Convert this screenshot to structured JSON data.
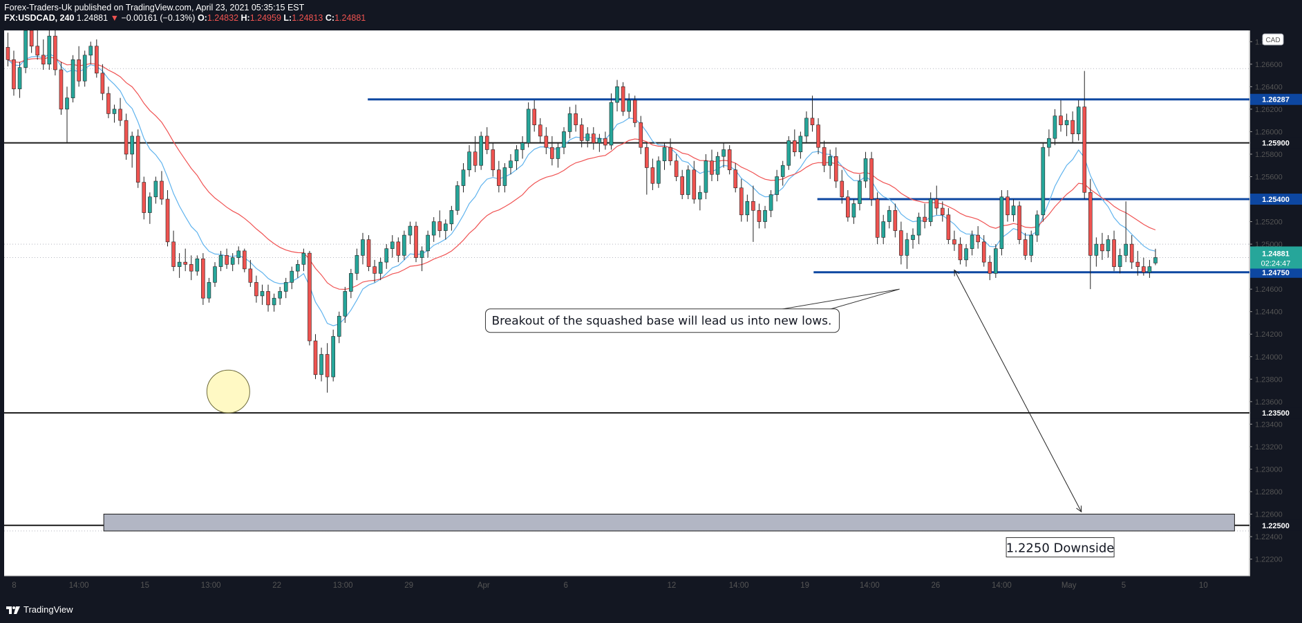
{
  "header": {
    "line1": "Forex-Traders-Uk published on TradingView.com, April 23, 2021 05:35:15 EST",
    "symbol": "FX:USDCAD, 240",
    "last": "1.24881",
    "arrow": "▼",
    "change": "−0.00161 (−0.13%)",
    "o_label": "O:",
    "o_value": "1.24832",
    "h_label": "H:",
    "h_value": "1.24959",
    "l_label": "L:",
    "l_value": "1.24813",
    "c_label": "C:",
    "c_value": "1.24881"
  },
  "footer": {
    "brand": "TradingView"
  },
  "colors": {
    "up": "#26a69a",
    "down": "#ef5350",
    "ema_fast": "#5fb3ee",
    "ema_slow": "#f05252",
    "level": "#0d47a1",
    "bg": "#ffffff",
    "frame": "#131722"
  },
  "chart_data": {
    "type": "candlestick",
    "symbol": "FX:USDCAD",
    "interval": "240",
    "currency": "CAD",
    "ylim": [
      1.2205,
      1.269
    ],
    "y_ticks": [
      "1.26800",
      "1.26600",
      "1.26400",
      "1.26200",
      "1.26000",
      "1.25800",
      "1.25600",
      "1.25400",
      "1.25200",
      "1.25000",
      "1.24600",
      "1.24400",
      "1.24200",
      "1.24000",
      "1.23800",
      "1.23600",
      "1.23400",
      "1.23200",
      "1.23000",
      "1.22800",
      "1.22600",
      "1.22400",
      "1.22200"
    ],
    "x_ticks": [
      "8",
      "14:00",
      "15",
      "13:00",
      "22",
      "13:00",
      "29",
      "Apr",
      "6",
      "12",
      "14:00",
      "19",
      "14:00",
      "26",
      "14:00",
      "May",
      "5",
      "10"
    ],
    "x_tick_pos": [
      0.008,
      0.06,
      0.113,
      0.166,
      0.219,
      0.272,
      0.325,
      0.385,
      0.451,
      0.536,
      0.59,
      0.643,
      0.695,
      0.748,
      0.801,
      0.855,
      0.899,
      0.963
    ],
    "last_price": "1.24881",
    "countdown": "02:24:47",
    "levels": [
      {
        "price": 1.26287,
        "label": "1.26287",
        "style": "blue",
        "from": 0.292
      },
      {
        "price": 1.259,
        "label": "1.25900",
        "style": "black",
        "from": 0.0
      },
      {
        "price": 1.254,
        "label": "1.25400",
        "style": "blue",
        "from": 0.653
      },
      {
        "price": 1.2475,
        "label": "1.24750",
        "style": "blue",
        "from": 0.65
      },
      {
        "price": 1.235,
        "label": "1.23500",
        "style": "black",
        "from": 0.0
      },
      {
        "price": 1.225,
        "label": "1.22500",
        "style": "black",
        "from": 0.0
      }
    ],
    "dotted_levels": [
      1.2656,
      1.25,
      1.24881,
      1.2245
    ],
    "zone": {
      "top": 1.226,
      "bottom": 1.2245,
      "x0": 0.08,
      "x1": 0.988
    },
    "annotations": [
      {
        "text": "Breakout of the squashed base will lead us into new lows.",
        "x": 0.528,
        "y": 1.2432
      },
      {
        "text": "1.2250 Downside",
        "x": 0.848,
        "y": 1.22305
      }
    ],
    "circle": {
      "x": 0.18,
      "y": 1.2369
    },
    "arrow": {
      "x0": 0.763,
      "y0": 1.2477,
      "x1": 0.865,
      "y1": 1.2262
    },
    "candles": [
      [
        1.2675,
        1.2688,
        1.2658,
        1.2664
      ],
      [
        1.2664,
        1.2672,
        1.2632,
        1.2638
      ],
      [
        1.2638,
        1.2662,
        1.263,
        1.2657
      ],
      [
        1.2657,
        1.2695,
        1.2652,
        1.269
      ],
      [
        1.269,
        1.27,
        1.267,
        1.2676
      ],
      [
        1.2676,
        1.269,
        1.2664,
        1.2668
      ],
      [
        1.2668,
        1.2682,
        1.2655,
        1.266
      ],
      [
        1.266,
        1.2694,
        1.2655,
        1.2685
      ],
      [
        1.2685,
        1.2698,
        1.265,
        1.2655
      ],
      [
        1.2655,
        1.2662,
        1.2615,
        1.262
      ],
      [
        1.262,
        1.264,
        1.259,
        1.263
      ],
      [
        1.263,
        1.2668,
        1.2626,
        1.2664
      ],
      [
        1.2664,
        1.2676,
        1.264,
        1.2645
      ],
      [
        1.2645,
        1.2672,
        1.264,
        1.2668
      ],
      [
        1.2668,
        1.268,
        1.266,
        1.2676
      ],
      [
        1.2676,
        1.2682,
        1.2648,
        1.2652
      ],
      [
        1.2652,
        1.266,
        1.2628,
        1.2634
      ],
      [
        1.2634,
        1.264,
        1.2612,
        1.2616
      ],
      [
        1.2616,
        1.2624,
        1.2608,
        1.262
      ],
      [
        1.262,
        1.263,
        1.2605,
        1.261
      ],
      [
        1.261,
        1.2616,
        1.2575,
        1.258
      ],
      [
        1.258,
        1.26,
        1.2568,
        1.2596
      ],
      [
        1.2596,
        1.2602,
        1.255,
        1.2555
      ],
      [
        1.2555,
        1.256,
        1.2522,
        1.2528
      ],
      [
        1.2528,
        1.2546,
        1.2518,
        1.2542
      ],
      [
        1.2542,
        1.256,
        1.2536,
        1.2556
      ],
      [
        1.2556,
        1.2565,
        1.2535,
        1.254
      ],
      [
        1.254,
        1.2548,
        1.2498,
        1.2502
      ],
      [
        1.2502,
        1.2512,
        1.2476,
        1.248
      ],
      [
        1.248,
        1.2492,
        1.247,
        1.2484
      ],
      [
        1.2484,
        1.2496,
        1.2476,
        1.2482
      ],
      [
        1.2482,
        1.249,
        1.2468,
        1.2476
      ],
      [
        1.2476,
        1.249,
        1.2472,
        1.2487
      ],
      [
        1.2487,
        1.2492,
        1.2446,
        1.2452
      ],
      [
        1.2452,
        1.247,
        1.2448,
        1.2466
      ],
      [
        1.2466,
        1.2484,
        1.2462,
        1.248
      ],
      [
        1.248,
        1.2494,
        1.2476,
        1.249
      ],
      [
        1.249,
        1.2496,
        1.2478,
        1.2482
      ],
      [
        1.2482,
        1.2492,
        1.2476,
        1.2488
      ],
      [
        1.2488,
        1.2498,
        1.2482,
        1.2494
      ],
      [
        1.2494,
        1.2496,
        1.2475,
        1.2478
      ],
      [
        1.2478,
        1.2486,
        1.2462,
        1.2466
      ],
      [
        1.2466,
        1.2472,
        1.2448,
        1.2454
      ],
      [
        1.2454,
        1.2464,
        1.2446,
        1.2458
      ],
      [
        1.2458,
        1.2464,
        1.244,
        1.2446
      ],
      [
        1.2446,
        1.2456,
        1.244,
        1.2452
      ],
      [
        1.2452,
        1.2462,
        1.2446,
        1.2458
      ],
      [
        1.2458,
        1.247,
        1.2452,
        1.2466
      ],
      [
        1.2466,
        1.248,
        1.246,
        1.2476
      ],
      [
        1.2476,
        1.2486,
        1.247,
        1.2482
      ],
      [
        1.2482,
        1.2496,
        1.2476,
        1.2492
      ],
      [
        1.2492,
        1.2494,
        1.241,
        1.2414
      ],
      [
        1.2414,
        1.242,
        1.238,
        1.2384
      ],
      [
        1.2384,
        1.2408,
        1.2378,
        1.2402
      ],
      [
        1.2402,
        1.2412,
        1.2368,
        1.2382
      ],
      [
        1.2382,
        1.2424,
        1.2378,
        1.2418
      ],
      [
        1.2418,
        1.244,
        1.2412,
        1.2436
      ],
      [
        1.2436,
        1.2462,
        1.243,
        1.2458
      ],
      [
        1.2458,
        1.2478,
        1.2452,
        1.2474
      ],
      [
        1.2474,
        1.2496,
        1.2468,
        1.249
      ],
      [
        1.249,
        1.251,
        1.2482,
        1.2504
      ],
      [
        1.2504,
        1.2508,
        1.2476,
        1.248
      ],
      [
        1.248,
        1.2486,
        1.2466,
        1.2474
      ],
      [
        1.2474,
        1.2488,
        1.2468,
        1.2484
      ],
      [
        1.2484,
        1.25,
        1.2478,
        1.2496
      ],
      [
        1.2496,
        1.2508,
        1.2488,
        1.2502
      ],
      [
        1.2502,
        1.2506,
        1.2484,
        1.249
      ],
      [
        1.249,
        1.2512,
        1.2486,
        1.2508
      ],
      [
        1.2508,
        1.252,
        1.25,
        1.2516
      ],
      [
        1.2516,
        1.252,
        1.2484,
        1.2488
      ],
      [
        1.2488,
        1.2498,
        1.2476,
        1.2494
      ],
      [
        1.2494,
        1.2512,
        1.2488,
        1.2508
      ],
      [
        1.2508,
        1.2524,
        1.2502,
        1.252
      ],
      [
        1.252,
        1.253,
        1.2506,
        1.2512
      ],
      [
        1.2512,
        1.2522,
        1.2504,
        1.2518
      ],
      [
        1.2518,
        1.2534,
        1.2512,
        1.253
      ],
      [
        1.253,
        1.2556,
        1.2526,
        1.2552
      ],
      [
        1.2552,
        1.2572,
        1.2546,
        1.2566
      ],
      [
        1.2566,
        1.2588,
        1.256,
        1.2582
      ],
      [
        1.2582,
        1.2596,
        1.2564,
        1.257
      ],
      [
        1.257,
        1.26,
        1.2566,
        1.2596
      ],
      [
        1.2596,
        1.2604,
        1.258,
        1.2584
      ],
      [
        1.2584,
        1.259,
        1.256,
        1.2566
      ],
      [
        1.2566,
        1.2574,
        1.2546,
        1.2552
      ],
      [
        1.2552,
        1.2572,
        1.2546,
        1.2568
      ],
      [
        1.2568,
        1.258,
        1.2562,
        1.2574
      ],
      [
        1.2574,
        1.2588,
        1.2566,
        1.2584
      ],
      [
        1.2584,
        1.2596,
        1.2576,
        1.259
      ],
      [
        1.259,
        1.2626,
        1.2586,
        1.262
      ],
      [
        1.262,
        1.2628,
        1.26,
        1.2606
      ],
      [
        1.2606,
        1.2612,
        1.259,
        1.2596
      ],
      [
        1.2596,
        1.2604,
        1.258,
        1.2586
      ],
      [
        1.2586,
        1.2596,
        1.257,
        1.2576
      ],
      [
        1.2576,
        1.259,
        1.2568,
        1.2586
      ],
      [
        1.2586,
        1.2604,
        1.258,
        1.26
      ],
      [
        1.26,
        1.2622,
        1.2594,
        1.2616
      ],
      [
        1.2616,
        1.2624,
        1.26,
        1.2606
      ],
      [
        1.2606,
        1.2612,
        1.2586,
        1.2592
      ],
      [
        1.2592,
        1.2604,
        1.2586,
        1.2598
      ],
      [
        1.2598,
        1.2604,
        1.2584,
        1.259
      ],
      [
        1.259,
        1.2598,
        1.2582,
        1.2594
      ],
      [
        1.2594,
        1.26,
        1.2584,
        1.2588
      ],
      [
        1.2588,
        1.2634,
        1.2584,
        1.2626
      ],
      [
        1.2626,
        1.2646,
        1.2618,
        1.264
      ],
      [
        1.264,
        1.2644,
        1.2614,
        1.2618
      ],
      [
        1.2618,
        1.2634,
        1.2612,
        1.2628
      ],
      [
        1.2628,
        1.2632,
        1.2604,
        1.2608
      ],
      [
        1.2608,
        1.2614,
        1.258,
        1.2586
      ],
      [
        1.2586,
        1.259,
        1.2544,
        1.2568
      ],
      [
        1.2568,
        1.2576,
        1.2548,
        1.2554
      ],
      [
        1.2554,
        1.2578,
        1.255,
        1.2574
      ],
      [
        1.2574,
        1.259,
        1.2566,
        1.2586
      ],
      [
        1.2586,
        1.2594,
        1.257,
        1.2574
      ],
      [
        1.2574,
        1.258,
        1.2556,
        1.256
      ],
      [
        1.256,
        1.2566,
        1.254,
        1.2544
      ],
      [
        1.2544,
        1.257,
        1.254,
        1.2566
      ],
      [
        1.2566,
        1.2574,
        1.2536,
        1.254
      ],
      [
        1.254,
        1.2552,
        1.253,
        1.2546
      ],
      [
        1.2546,
        1.258,
        1.254,
        1.2574
      ],
      [
        1.2574,
        1.2584,
        1.2556,
        1.2562
      ],
      [
        1.2562,
        1.2582,
        1.2556,
        1.2578
      ],
      [
        1.2578,
        1.259,
        1.2568,
        1.2584
      ],
      [
        1.2584,
        1.2588,
        1.2562,
        1.2566
      ],
      [
        1.2566,
        1.2572,
        1.2546,
        1.255
      ],
      [
        1.255,
        1.2558,
        1.252,
        1.2526
      ],
      [
        1.2526,
        1.2544,
        1.252,
        1.2538
      ],
      [
        1.2538,
        1.2552,
        1.2502,
        1.253
      ],
      [
        1.253,
        1.2536,
        1.2514,
        1.252
      ],
      [
        1.252,
        1.2534,
        1.2514,
        1.253
      ],
      [
        1.253,
        1.2548,
        1.2524,
        1.2544
      ],
      [
        1.2544,
        1.2566,
        1.2538,
        1.256
      ],
      [
        1.256,
        1.2574,
        1.2552,
        1.257
      ],
      [
        1.257,
        1.2596,
        1.2566,
        1.2592
      ],
      [
        1.2592,
        1.2602,
        1.2578,
        1.2582
      ],
      [
        1.2582,
        1.26,
        1.2576,
        1.2596
      ],
      [
        1.2596,
        1.2618,
        1.259,
        1.2612
      ],
      [
        1.2612,
        1.2632,
        1.26,
        1.2606
      ],
      [
        1.2606,
        1.2612,
        1.258,
        1.2586
      ],
      [
        1.2586,
        1.2592,
        1.2564,
        1.257
      ],
      [
        1.257,
        1.2584,
        1.2558,
        1.2578
      ],
      [
        1.2578,
        1.2586,
        1.255,
        1.2556
      ],
      [
        1.2556,
        1.2566,
        1.2536,
        1.2542
      ],
      [
        1.2542,
        1.2548,
        1.252,
        1.2524
      ],
      [
        1.2524,
        1.254,
        1.2518,
        1.2536
      ],
      [
        1.2536,
        1.2562,
        1.253,
        1.2556
      ],
      [
        1.2556,
        1.2582,
        1.255,
        1.2576
      ],
      [
        1.2576,
        1.2582,
        1.2534,
        1.254
      ],
      [
        1.254,
        1.2546,
        1.25,
        1.2506
      ],
      [
        1.2506,
        1.2526,
        1.25,
        1.252
      ],
      [
        1.252,
        1.2534,
        1.2514,
        1.253
      ],
      [
        1.253,
        1.2536,
        1.2506,
        1.2512
      ],
      [
        1.2512,
        1.252,
        1.2482,
        1.249
      ],
      [
        1.249,
        1.251,
        1.2478,
        1.2504
      ],
      [
        1.2504,
        1.2514,
        1.2496,
        1.2508
      ],
      [
        1.2508,
        1.2528,
        1.25,
        1.2524
      ],
      [
        1.2524,
        1.2536,
        1.2514,
        1.252
      ],
      [
        1.252,
        1.2546,
        1.2516,
        1.254
      ],
      [
        1.254,
        1.2552,
        1.2526,
        1.2532
      ],
      [
        1.2532,
        1.2538,
        1.252,
        1.2526
      ],
      [
        1.2526,
        1.2532,
        1.25,
        1.2504
      ],
      [
        1.2504,
        1.2512,
        1.2494,
        1.25
      ],
      [
        1.25,
        1.2506,
        1.2482,
        1.2486
      ],
      [
        1.2486,
        1.25,
        1.248,
        1.2496
      ],
      [
        1.2496,
        1.2512,
        1.249,
        1.2508
      ],
      [
        1.2508,
        1.2516,
        1.2496,
        1.2502
      ],
      [
        1.2502,
        1.2508,
        1.248,
        1.2484
      ],
      [
        1.2484,
        1.249,
        1.2468,
        1.2474
      ],
      [
        1.2474,
        1.25,
        1.247,
        1.2496
      ],
      [
        1.2496,
        1.2548,
        1.249,
        1.2542
      ],
      [
        1.2542,
        1.2548,
        1.252,
        1.2526
      ],
      [
        1.2526,
        1.254,
        1.252,
        1.2534
      ],
      [
        1.2534,
        1.2538,
        1.25,
        1.2504
      ],
      [
        1.2504,
        1.251,
        1.2486,
        1.249
      ],
      [
        1.249,
        1.2512,
        1.2484,
        1.2508
      ],
      [
        1.2508,
        1.253,
        1.2502,
        1.2526
      ],
      [
        1.2526,
        1.259,
        1.252,
        1.2586
      ],
      [
        1.2586,
        1.2602,
        1.2578,
        1.2594
      ],
      [
        1.2594,
        1.262,
        1.2588,
        1.2614
      ],
      [
        1.2614,
        1.2628,
        1.26,
        1.2606
      ],
      [
        1.2606,
        1.2616,
        1.2596,
        1.261
      ],
      [
        1.261,
        1.2618,
        1.259,
        1.2598
      ],
      [
        1.2598,
        1.2628,
        1.2592,
        1.2622
      ],
      [
        1.2622,
        1.2654,
        1.254,
        1.2546
      ],
      [
        1.2546,
        1.2558,
        1.246,
        1.249
      ],
      [
        1.249,
        1.2506,
        1.248,
        1.25
      ],
      [
        1.25,
        1.251,
        1.2486,
        1.2494
      ],
      [
        1.2494,
        1.2508,
        1.2488,
        1.2504
      ],
      [
        1.2504,
        1.2512,
        1.2476,
        1.248
      ],
      [
        1.248,
        1.2496,
        1.2474,
        1.249
      ],
      [
        1.249,
        1.2538,
        1.2484,
        1.25
      ],
      [
        1.25,
        1.2508,
        1.2478,
        1.2484
      ],
      [
        1.2484,
        1.2494,
        1.2472,
        1.248
      ],
      [
        1.248,
        1.2488,
        1.2472,
        1.2475
      ],
      [
        1.2475,
        1.2486,
        1.247,
        1.248
      ],
      [
        1.24832,
        1.24959,
        1.24813,
        1.24881
      ]
    ]
  }
}
